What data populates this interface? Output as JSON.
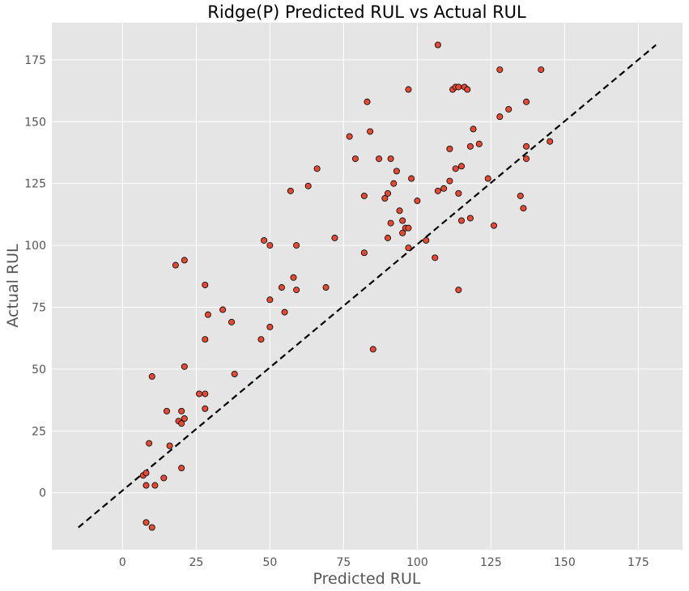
{
  "chart_data": {
    "type": "scatter",
    "title": "Ridge(P) Predicted RUL vs Actual RUL",
    "xlabel": "Predicted RUL",
    "ylabel": "Actual RUL",
    "xlim": [
      -24,
      190
    ],
    "ylim": [
      -23,
      190
    ],
    "xticks": [
      0,
      25,
      50,
      75,
      100,
      125,
      150,
      175
    ],
    "yticks": [
      0,
      25,
      50,
      75,
      100,
      125,
      150,
      175
    ],
    "grid": true,
    "colors": {
      "background": "#e5e5e5",
      "grid": "#ffffff",
      "point_fill": "#e24a33",
      "point_edge": "#000000",
      "reference_line": "#000000"
    },
    "reference_line": {
      "style": "dashed",
      "from": [
        -15,
        -14
      ],
      "to": [
        181,
        181
      ]
    },
    "points": [
      {
        "x": 107,
        "y": 181
      },
      {
        "x": 128,
        "y": 171
      },
      {
        "x": 142,
        "y": 171
      },
      {
        "x": 97,
        "y": 163
      },
      {
        "x": 112,
        "y": 163
      },
      {
        "x": 113,
        "y": 164
      },
      {
        "x": 114,
        "y": 164
      },
      {
        "x": 116,
        "y": 164
      },
      {
        "x": 117,
        "y": 163
      },
      {
        "x": 83,
        "y": 158
      },
      {
        "x": 137,
        "y": 158
      },
      {
        "x": 131,
        "y": 155
      },
      {
        "x": 128,
        "y": 152
      },
      {
        "x": 84,
        "y": 146
      },
      {
        "x": 119,
        "y": 147
      },
      {
        "x": 77,
        "y": 144
      },
      {
        "x": 145,
        "y": 142
      },
      {
        "x": 121,
        "y": 141
      },
      {
        "x": 137,
        "y": 140
      },
      {
        "x": 111,
        "y": 139
      },
      {
        "x": 118,
        "y": 140
      },
      {
        "x": 79,
        "y": 135
      },
      {
        "x": 87,
        "y": 135
      },
      {
        "x": 91,
        "y": 135
      },
      {
        "x": 137,
        "y": 135
      },
      {
        "x": 115,
        "y": 132
      },
      {
        "x": 113,
        "y": 131
      },
      {
        "x": 66,
        "y": 131
      },
      {
        "x": 93,
        "y": 130
      },
      {
        "x": 98,
        "y": 127
      },
      {
        "x": 124,
        "y": 127
      },
      {
        "x": 92,
        "y": 125
      },
      {
        "x": 111,
        "y": 126
      },
      {
        "x": 63,
        "y": 124
      },
      {
        "x": 109,
        "y": 123
      },
      {
        "x": 57,
        "y": 122
      },
      {
        "x": 107,
        "y": 122
      },
      {
        "x": 90,
        "y": 121
      },
      {
        "x": 114,
        "y": 121
      },
      {
        "x": 82,
        "y": 120
      },
      {
        "x": 135,
        "y": 120
      },
      {
        "x": 89,
        "y": 119
      },
      {
        "x": 100,
        "y": 118
      },
      {
        "x": 136,
        "y": 115
      },
      {
        "x": 94,
        "y": 114
      },
      {
        "x": 118,
        "y": 111
      },
      {
        "x": 115,
        "y": 110
      },
      {
        "x": 95,
        "y": 110
      },
      {
        "x": 91,
        "y": 109
      },
      {
        "x": 96,
        "y": 107
      },
      {
        "x": 97,
        "y": 107
      },
      {
        "x": 126,
        "y": 108
      },
      {
        "x": 95,
        "y": 105
      },
      {
        "x": 48,
        "y": 102
      },
      {
        "x": 72,
        "y": 103
      },
      {
        "x": 90,
        "y": 103
      },
      {
        "x": 103,
        "y": 102
      },
      {
        "x": 50,
        "y": 100
      },
      {
        "x": 59,
        "y": 100
      },
      {
        "x": 97,
        "y": 99
      },
      {
        "x": 82,
        "y": 97
      },
      {
        "x": 106,
        "y": 95
      },
      {
        "x": 21,
        "y": 94
      },
      {
        "x": 18,
        "y": 92
      },
      {
        "x": 58,
        "y": 87
      },
      {
        "x": 28,
        "y": 84
      },
      {
        "x": 54,
        "y": 83
      },
      {
        "x": 69,
        "y": 83
      },
      {
        "x": 59,
        "y": 82
      },
      {
        "x": 114,
        "y": 82
      },
      {
        "x": 50,
        "y": 78
      },
      {
        "x": 34,
        "y": 74
      },
      {
        "x": 55,
        "y": 73
      },
      {
        "x": 29,
        "y": 72
      },
      {
        "x": 37,
        "y": 69
      },
      {
        "x": 50,
        "y": 67
      },
      {
        "x": 28,
        "y": 62
      },
      {
        "x": 47,
        "y": 62
      },
      {
        "x": 85,
        "y": 58
      },
      {
        "x": 21,
        "y": 51
      },
      {
        "x": 38,
        "y": 48
      },
      {
        "x": 10,
        "y": 47
      },
      {
        "x": 26,
        "y": 40
      },
      {
        "x": 28,
        "y": 40
      },
      {
        "x": 15,
        "y": 33
      },
      {
        "x": 20,
        "y": 33
      },
      {
        "x": 28,
        "y": 34
      },
      {
        "x": 19,
        "y": 29
      },
      {
        "x": 21,
        "y": 30
      },
      {
        "x": 20,
        "y": 28
      },
      {
        "x": 9,
        "y": 20
      },
      {
        "x": 16,
        "y": 19
      },
      {
        "x": 20,
        "y": 10
      },
      {
        "x": 7,
        "y": 7
      },
      {
        "x": 8,
        "y": 8
      },
      {
        "x": 14,
        "y": 6
      },
      {
        "x": 8,
        "y": 3
      },
      {
        "x": 11,
        "y": 3
      },
      {
        "x": 8,
        "y": -12
      },
      {
        "x": 10,
        "y": -14
      }
    ]
  }
}
